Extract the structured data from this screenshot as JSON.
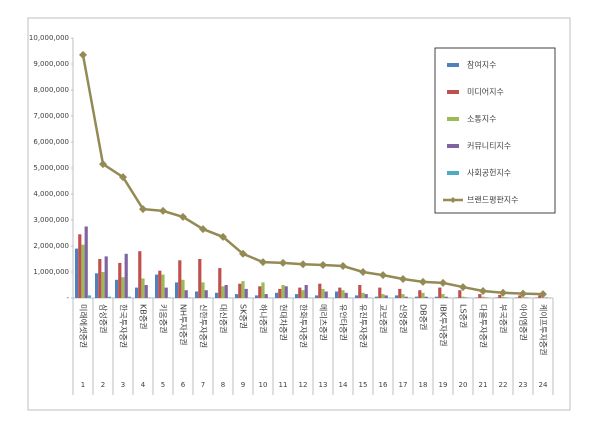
{
  "chart_data": {
    "type": "bar",
    "categories": [
      "미래에셋증권",
      "삼성증권",
      "한국투자증권",
      "KB증권",
      "키움증권",
      "NH투자증권",
      "신한투자증권",
      "대신증권",
      "SK증권",
      "하나증권",
      "현대차증권",
      "한화투자증권",
      "메리츠증권",
      "유안타증권",
      "유진투자증권",
      "교보증권",
      "신영증권",
      "DB증권",
      "IBK투자증권",
      "LS증권",
      "다올투자증권",
      "부국증권",
      "아이엠증권",
      "케이프투자증권"
    ],
    "ranks": [
      1,
      2,
      3,
      4,
      5,
      6,
      7,
      8,
      9,
      10,
      11,
      12,
      13,
      14,
      15,
      16,
      17,
      18,
      19,
      20,
      21,
      22,
      23,
      24
    ],
    "series": [
      {
        "name": "참여지수",
        "color": "#4f81bd",
        "values": [
          1900000,
          950000,
          700000,
          400000,
          900000,
          600000,
          250000,
          200000,
          150000,
          100000,
          200000,
          150000,
          100000,
          250000,
          100000,
          50000,
          100000,
          50000,
          50000,
          20000,
          20000,
          20000,
          20000,
          20000
        ]
      },
      {
        "name": "미디어지수",
        "color": "#c0504d",
        "values": [
          2450000,
          1500000,
          1350000,
          1800000,
          1050000,
          1450000,
          1500000,
          1150000,
          550000,
          450000,
          350000,
          400000,
          550000,
          400000,
          500000,
          400000,
          350000,
          300000,
          400000,
          300000,
          150000,
          120000,
          100000,
          100000
        ]
      },
      {
        "name": "소통지수",
        "color": "#9bbb59",
        "values": [
          2050000,
          1000000,
          800000,
          750000,
          900000,
          700000,
          600000,
          450000,
          650000,
          600000,
          500000,
          300000,
          350000,
          300000,
          200000,
          150000,
          150000,
          200000,
          150000,
          50000,
          50000,
          40000,
          30000,
          20000
        ]
      },
      {
        "name": "커뮤니티지수",
        "color": "#8064a2",
        "values": [
          2750000,
          1600000,
          1700000,
          500000,
          400000,
          300000,
          300000,
          500000,
          350000,
          150000,
          450000,
          500000,
          250000,
          200000,
          150000,
          100000,
          50000,
          50000,
          50000,
          20000,
          20000,
          20000,
          20000,
          20000
        ]
      },
      {
        "name": "사회공헌지수",
        "color": "#4bacc6",
        "values": [
          100000,
          50000,
          50000,
          20000,
          20000,
          20000,
          20000,
          10000,
          10000,
          10000,
          10000,
          10000,
          10000,
          10000,
          10000,
          10000,
          10000,
          10000,
          10000,
          10000,
          10000,
          10000,
          10000,
          10000
        ]
      },
      {
        "name": "브랜드평판지수",
        "color": "#948a54",
        "type": "line",
        "values": [
          9350000,
          5150000,
          4650000,
          3420000,
          3350000,
          3120000,
          2650000,
          2350000,
          1700000,
          1380000,
          1350000,
          1300000,
          1270000,
          1230000,
          1000000,
          880000,
          730000,
          620000,
          580000,
          420000,
          270000,
          200000,
          170000,
          150000
        ]
      }
    ],
    "ylim": [
      0,
      10000000
    ],
    "yticks": [
      {
        "value": 0,
        "label": "-"
      },
      {
        "value": 1000000,
        "label": "1,000,000"
      },
      {
        "value": 2000000,
        "label": "2,000,000"
      },
      {
        "value": 3000000,
        "label": "3,000,000"
      },
      {
        "value": 4000000,
        "label": "4,000,000"
      },
      {
        "value": 5000000,
        "label": "5,000,000"
      },
      {
        "value": 6000000,
        "label": "6,000,000"
      },
      {
        "value": 7000000,
        "label": "7,000,000"
      },
      {
        "value": 8000000,
        "label": "8,000,000"
      },
      {
        "value": 9000000,
        "label": "9,000,000"
      },
      {
        "value": 10000000,
        "label": "10,000,000"
      }
    ]
  }
}
